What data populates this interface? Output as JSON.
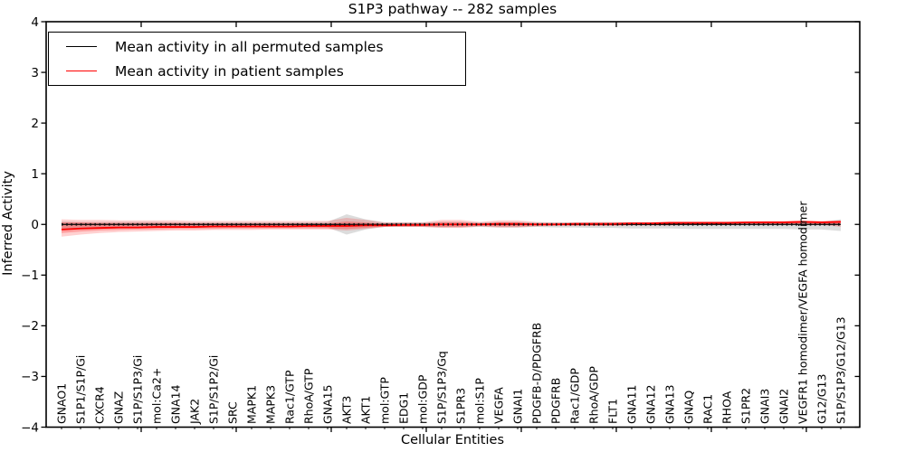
{
  "chart": {
    "title": "S1P3 pathway -- 282 samples",
    "xlabel": "Cellular Entities",
    "ylabel": "Inferred Activity",
    "legend": [
      {
        "label": "Mean activity in all permuted samples",
        "color": "#000000"
      },
      {
        "label": "Mean activity in patient samples",
        "color": "#ff0000"
      }
    ]
  },
  "chart_data": {
    "type": "line",
    "title": "S1P3 pathway -- 282 samples",
    "xlabel": "Cellular Entities",
    "ylabel": "Inferred Activity",
    "ylim": [
      -4,
      4
    ],
    "yticks": [
      4,
      3,
      2,
      1,
      0,
      -1,
      -2,
      -3,
      -4
    ],
    "yticklabels": [
      "4",
      "3",
      "2",
      "1",
      "0",
      "−1",
      "−2",
      "−3",
      "−4"
    ],
    "grid": false,
    "legend_position": "upper left",
    "categories": [
      "GNAO1",
      "S1P1/S1P/Gi",
      "CXCR4",
      "GNAZ",
      "S1P/S1P3/Gi",
      "mol:Ca2+",
      "GNA14",
      "JAK2",
      "S1P/S1P2/Gi",
      "SRC",
      "MAPK1",
      "MAPK3",
      "Rac1/GTP",
      "RhoA/GTP",
      "GNA15",
      "AKT3",
      "AKT1",
      "mol:GTP",
      "EDG1",
      "mol:GDP",
      "S1P/S1P3/Gq",
      "S1PR3",
      "mol:S1P",
      "VEGFA",
      "GNAI1",
      "PDGFB-D/PDGFRB",
      "PDGFRB",
      "Rac1/GDP",
      "RhoA/GDP",
      "FLT1",
      "GNA11",
      "GNA12",
      "GNA13",
      "GNAQ",
      "RAC1",
      "RHOA",
      "S1PR2",
      "GNAI3",
      "GNAI2",
      "VEGFR1 homodimer/VEGFA homodimer",
      "G12/G13",
      "S1P/S1P3/G12/G13"
    ],
    "series": [
      {
        "name": "Mean activity in all permuted samples",
        "color": "#000000",
        "style": "solid-with-dot-markers",
        "values": [
          0,
          0,
          0,
          0,
          0,
          0,
          0,
          0,
          0,
          0,
          0,
          0,
          0,
          0,
          0,
          0,
          0,
          0,
          0,
          0,
          0,
          0,
          0,
          0,
          0,
          0,
          0,
          0,
          0,
          0,
          0,
          0,
          0,
          0,
          0,
          0,
          0,
          0,
          0,
          0,
          0,
          0
        ]
      },
      {
        "name": "Mean activity in patient samples",
        "color": "#ff0000",
        "style": "solid",
        "values": [
          -0.1,
          -0.08,
          -0.07,
          -0.06,
          -0.06,
          -0.05,
          -0.05,
          -0.05,
          -0.04,
          -0.04,
          -0.04,
          -0.04,
          -0.04,
          -0.03,
          -0.03,
          -0.03,
          -0.02,
          -0.02,
          -0.01,
          -0.01,
          0.0,
          0.0,
          0.0,
          0.01,
          0.01,
          0.0,
          0.0,
          0.01,
          0.01,
          0.01,
          0.02,
          0.02,
          0.03,
          0.03,
          0.03,
          0.03,
          0.04,
          0.04,
          0.04,
          0.05,
          0.04,
          0.05
        ]
      }
    ],
    "bands": [
      {
        "name": "permuted-samples-range",
        "color": "rgba(128,128,128,0.28)",
        "upper": [
          0.06,
          0.05,
          0.05,
          0.05,
          0.05,
          0.05,
          0.04,
          0.04,
          0.04,
          0.04,
          0.04,
          0.04,
          0.04,
          0.04,
          0.05,
          0.2,
          0.1,
          0.04,
          0.04,
          0.04,
          0.05,
          0.05,
          0.04,
          0.05,
          0.05,
          0.04,
          0.04,
          0.04,
          0.04,
          0.04,
          0.04,
          0.04,
          0.04,
          0.04,
          0.04,
          0.04,
          0.04,
          0.04,
          0.04,
          0.05,
          0.05,
          0.1
        ],
        "lower": [
          -0.1,
          -0.09,
          -0.08,
          -0.08,
          -0.07,
          -0.07,
          -0.07,
          -0.06,
          -0.06,
          -0.06,
          -0.06,
          -0.06,
          -0.06,
          -0.06,
          -0.06,
          -0.2,
          -0.1,
          -0.05,
          -0.05,
          -0.05,
          -0.06,
          -0.06,
          -0.05,
          -0.06,
          -0.06,
          -0.05,
          -0.06,
          -0.06,
          -0.07,
          -0.07,
          -0.08,
          -0.08,
          -0.08,
          -0.09,
          -0.09,
          -0.09,
          -0.09,
          -0.09,
          -0.09,
          -0.1,
          -0.1,
          -0.13
        ]
      },
      {
        "name": "patient-samples-range-outer",
        "color": "rgba(255,45,45,0.22)",
        "upper": [
          0.1,
          0.09,
          0.09,
          0.08,
          0.08,
          0.08,
          0.08,
          0.07,
          0.07,
          0.07,
          0.07,
          0.07,
          0.07,
          0.07,
          0.07,
          0.13,
          0.09,
          0.04,
          0.04,
          0.04,
          0.09,
          0.09,
          0.05,
          0.08,
          0.08,
          0.05,
          0.04,
          0.04,
          0.05,
          0.05,
          0.05,
          0.05,
          0.06,
          0.06,
          0.06,
          0.06,
          0.06,
          0.07,
          0.07,
          0.08,
          0.07,
          0.08
        ],
        "lower": [
          -0.24,
          -0.2,
          -0.17,
          -0.15,
          -0.14,
          -0.13,
          -0.12,
          -0.12,
          -0.11,
          -0.11,
          -0.11,
          -0.1,
          -0.1,
          -0.1,
          -0.1,
          -0.12,
          -0.09,
          -0.05,
          -0.05,
          -0.05,
          -0.07,
          -0.07,
          -0.04,
          -0.06,
          -0.06,
          -0.04,
          -0.03,
          -0.03,
          -0.03,
          -0.03,
          -0.02,
          -0.02,
          -0.02,
          -0.01,
          -0.01,
          -0.01,
          -0.01,
          0.0,
          0.0,
          0.0,
          -0.01,
          -0.05
        ]
      },
      {
        "name": "patient-samples-range-inner",
        "color": "rgba(255,30,30,0.28)",
        "upper": [
          0.04,
          0.04,
          0.03,
          0.03,
          0.03,
          0.03,
          0.03,
          0.02,
          0.02,
          0.02,
          0.02,
          0.02,
          0.02,
          0.02,
          0.02,
          0.06,
          0.04,
          0.01,
          0.01,
          0.01,
          0.05,
          0.05,
          0.02,
          0.04,
          0.04,
          0.02,
          0.02,
          0.02,
          0.03,
          0.03,
          0.04,
          0.04,
          0.04,
          0.05,
          0.05,
          0.05,
          0.05,
          0.06,
          0.06,
          0.07,
          0.06,
          0.07
        ],
        "lower": [
          -0.17,
          -0.14,
          -0.12,
          -0.11,
          -0.1,
          -0.1,
          -0.09,
          -0.09,
          -0.09,
          -0.08,
          -0.08,
          -0.08,
          -0.08,
          -0.08,
          -0.08,
          -0.09,
          -0.07,
          -0.04,
          -0.04,
          -0.04,
          -0.05,
          -0.05,
          -0.03,
          -0.04,
          -0.04,
          -0.03,
          -0.02,
          -0.02,
          -0.02,
          -0.02,
          -0.01,
          -0.01,
          0.0,
          0.0,
          0.0,
          0.0,
          0.01,
          0.01,
          0.01,
          0.02,
          0.01,
          0.01
        ]
      }
    ]
  }
}
